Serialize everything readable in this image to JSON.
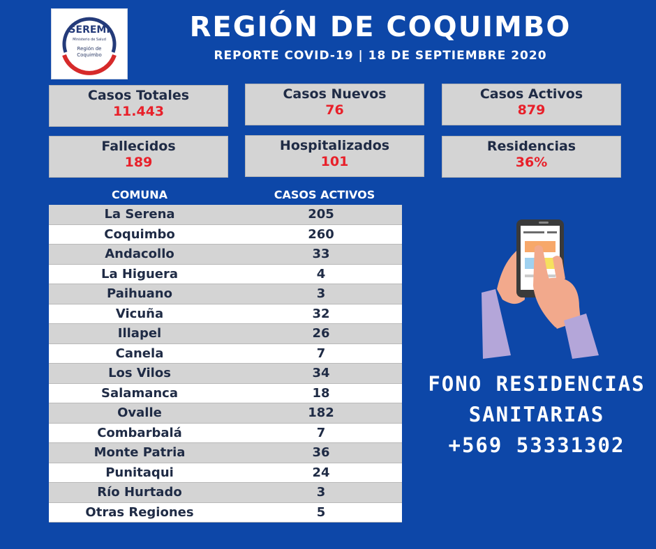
{
  "logo": {
    "name": "SEREMI",
    "line1": "Ministerio de Salud",
    "line2": "Región de",
    "line3": "Coquimbo"
  },
  "header": {
    "title": "REGIÓN DE COQUIMBO",
    "subtitle": "REPORTE COVID-19 | 18 DE SEPTIEMBRE 2020"
  },
  "stats": [
    {
      "label": "Casos Totales",
      "value": "11.443"
    },
    {
      "label": "Casos Nuevos",
      "value": "76"
    },
    {
      "label": "Casos Activos",
      "value": "879"
    },
    {
      "label": "Fallecidos",
      "value": "189"
    },
    {
      "label": "Hospitalizados",
      "value": "101"
    },
    {
      "label": "Residencias",
      "value": "36%"
    }
  ],
  "table": {
    "col1": "COMUNA",
    "col2": "CASOS ACTIVOS",
    "rows": [
      {
        "comuna": "La Serena",
        "casos": "205"
      },
      {
        "comuna": "Coquimbo",
        "casos": "260"
      },
      {
        "comuna": "Andacollo",
        "casos": "33"
      },
      {
        "comuna": "La Higuera",
        "casos": "4"
      },
      {
        "comuna": "Paihuano",
        "casos": "3"
      },
      {
        "comuna": "Vicuña",
        "casos": "32"
      },
      {
        "comuna": "Illapel",
        "casos": "26"
      },
      {
        "comuna": "Canela",
        "casos": "7"
      },
      {
        "comuna": "Los Vilos",
        "casos": "34"
      },
      {
        "comuna": "Salamanca",
        "casos": "18"
      },
      {
        "comuna": "Ovalle",
        "casos": "182"
      },
      {
        "comuna": "Combarbalá",
        "casos": "7"
      },
      {
        "comuna": "Monte Patria",
        "casos": "36"
      },
      {
        "comuna": "Punitaqui",
        "casos": "24"
      },
      {
        "comuna": "Río Hurtado",
        "casos": "3"
      },
      {
        "comuna": "Otras Regiones",
        "casos": "5"
      }
    ]
  },
  "fono": {
    "line1": "FONO RESIDENCIAS",
    "line2": "SANITARIAS",
    "line3": "+569 53331302"
  },
  "illustration": "hand-holding-phone-icon"
}
